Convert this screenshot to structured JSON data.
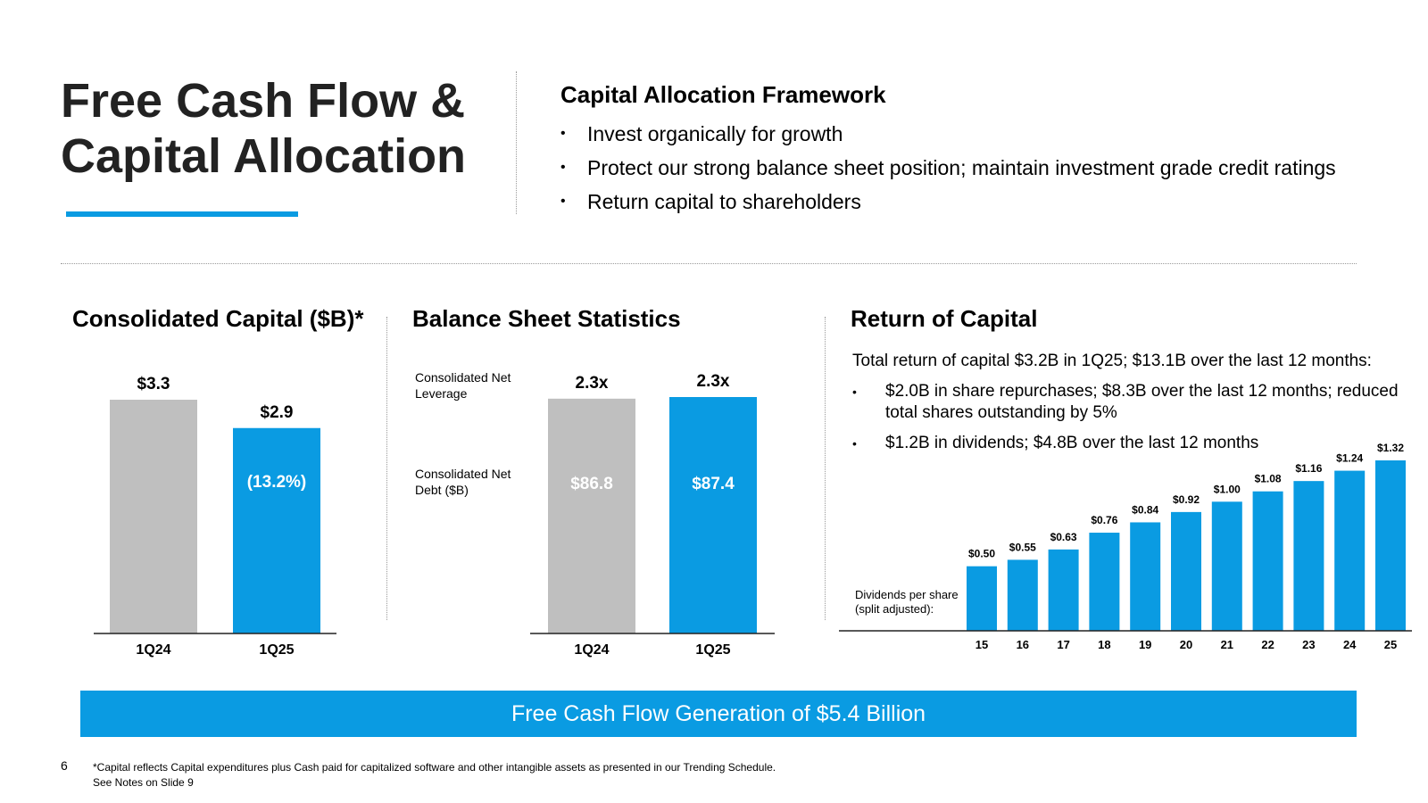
{
  "title_line1": "Free Cash Flow &",
  "title_line2": "Capital Allocation",
  "framework": {
    "title": "Capital Allocation Framework",
    "bullets": [
      "Invest organically for growth",
      "Protect our strong balance sheet position; maintain investment grade credit ratings",
      "Return capital to shareholders"
    ]
  },
  "return_of_capital": {
    "title": "Return of Capital",
    "summary": "Total return of capital $3.2B in 1Q25; $13.1B over the last 12 months:",
    "bullets": [
      "$2.0B in share repurchases; $8.3B over the last 12 months; reduced total shares outstanding by 5%",
      "$1.2B in dividends; $4.8B over the last 12 months"
    ]
  },
  "banner": "Free Cash Flow Generation of $5.4 Billion",
  "page_number": "6",
  "footnote_line1": "*Capital reflects Capital expenditures plus Cash paid for capitalized software and other intangible assets as presented in our Trending Schedule.",
  "footnote_line2": "See Notes on Slide 9",
  "colors": {
    "accent": "#0a9be2",
    "gray_bar": "#bfbfbf",
    "text": "#222222"
  },
  "chart_data": [
    {
      "type": "bar",
      "title": "Consolidated Capital ($B)*",
      "categories": [
        "1Q24",
        "1Q25"
      ],
      "values": [
        3.3,
        2.9
      ],
      "value_labels": [
        "$3.3",
        "$2.9"
      ],
      "change_label": "(13.2%)",
      "colors": [
        "#bfbfbf",
        "#0a9be2"
      ],
      "ylim": [
        0,
        3.3
      ]
    },
    {
      "type": "bar",
      "title": "Balance Sheet Statistics",
      "categories": [
        "1Q24",
        "1Q25"
      ],
      "row_labels": [
        "Consolidated Net Leverage",
        "Consolidated Net Debt ($B)"
      ],
      "leverage_values": [
        2.3,
        2.3
      ],
      "leverage_labels": [
        "2.3x",
        "2.3x"
      ],
      "debt_values": [
        86.8,
        87.4
      ],
      "debt_labels": [
        "$86.8",
        "$87.4"
      ],
      "colors": [
        "#bfbfbf",
        "#0a9be2"
      ],
      "ylim": [
        0,
        87.4
      ]
    },
    {
      "type": "bar",
      "title": "Dividends per share (split adjusted):",
      "categories": [
        "15",
        "16",
        "17",
        "18",
        "19",
        "20",
        "21",
        "22",
        "23",
        "24",
        "25"
      ],
      "values": [
        0.5,
        0.55,
        0.63,
        0.76,
        0.84,
        0.92,
        1.0,
        1.08,
        1.16,
        1.24,
        1.32
      ],
      "value_labels": [
        "$0.50",
        "$0.55",
        "$0.63",
        "$0.76",
        "$0.84",
        "$0.92",
        "$1.00",
        "$1.08",
        "$1.16",
        "$1.24",
        "$1.32"
      ],
      "color": "#0a9be2",
      "ylim": [
        0,
        1.32
      ]
    }
  ]
}
